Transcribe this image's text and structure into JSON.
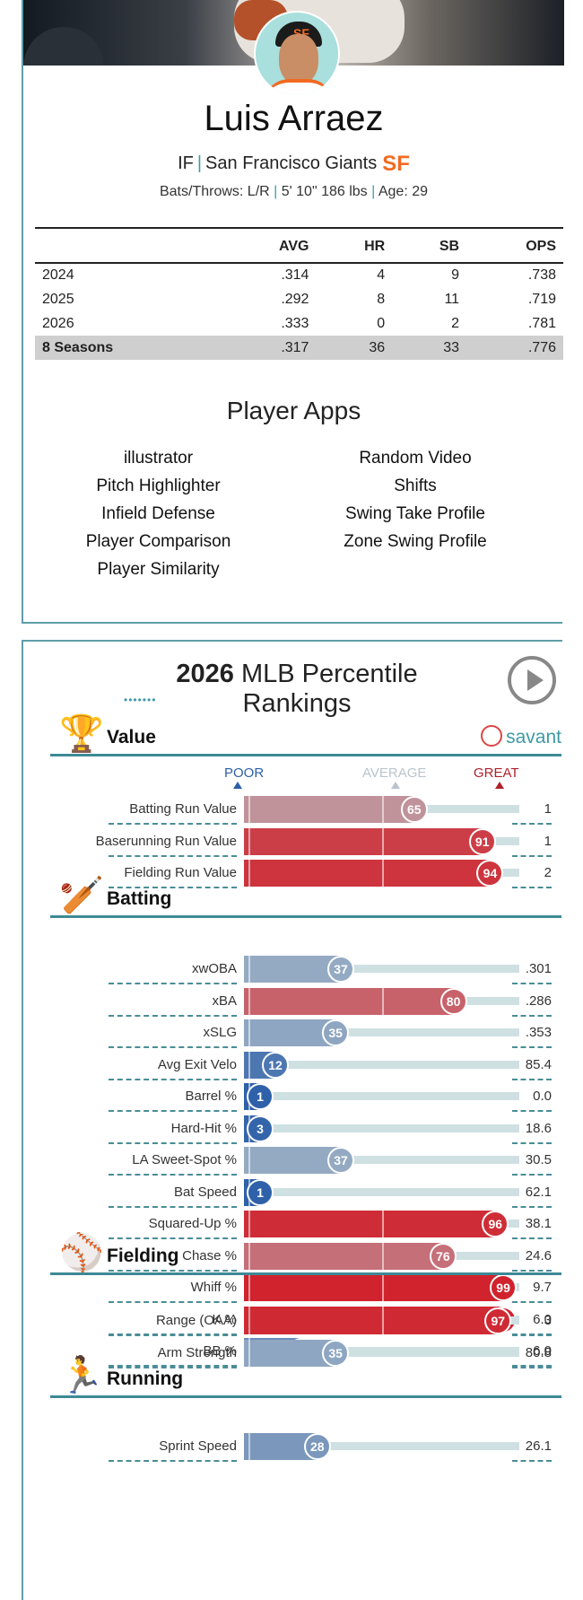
{
  "player": {
    "name": "Luis Arraez",
    "position": "IF",
    "sep": "|",
    "team": "San Francisco Giants",
    "team_logo": "SF",
    "bio_bats_throws": "Bats/Throws: L/R",
    "bio_height_weight": "5' 10\" 186 lbs",
    "bio_age": "Age: 29",
    "cap_logo": "SF"
  },
  "stats": {
    "headers": [
      "",
      "AVG",
      "HR",
      "SB",
      "OPS"
    ],
    "rows": [
      [
        "2024",
        ".314",
        "4",
        "9",
        ".738"
      ],
      [
        "2025",
        ".292",
        "8",
        "11",
        ".719"
      ],
      [
        "2026",
        ".333",
        "0",
        "2",
        ".781"
      ]
    ],
    "total": [
      "8 Seasons",
      ".317",
      "36",
      "33",
      ".776"
    ]
  },
  "apps": {
    "title": "Player Apps",
    "left": [
      "illustrator",
      "Pitch Highlighter",
      "Infield Defense",
      "Player Comparison",
      "Player Similarity"
    ],
    "right": [
      "Random Video",
      "Shifts",
      "Swing Take Profile",
      "Zone Swing Profile"
    ]
  },
  "percentiles": {
    "title_year": "2026",
    "title_rest": "MLB Percentile Rankings",
    "title_dots": "•••••••",
    "savant_label": "savant",
    "legend": {
      "poor": "POOR",
      "average": "AVERAGE",
      "great": "GREAT"
    },
    "colors": {
      "poor": "#2b5fa8",
      "average": "#b9c4cc",
      "great": "#d0202a"
    },
    "sections": [
      {
        "key": "value",
        "title": "Value",
        "icon": "trophy-icon",
        "glyph": "🏆",
        "metrics": [
          {
            "name": "Batting Run Value",
            "pct": 65,
            "value": "1"
          },
          {
            "name": "Baserunning Run Value",
            "pct": 91,
            "value": "1"
          },
          {
            "name": "Fielding Run Value",
            "pct": 94,
            "value": "2"
          }
        ]
      },
      {
        "key": "batting",
        "title": "Batting",
        "icon": "batter-icon",
        "glyph": "🏏",
        "metrics": [
          {
            "name": "xwOBA",
            "pct": 37,
            "value": ".301"
          },
          {
            "name": "xBA",
            "pct": 80,
            "value": ".286"
          },
          {
            "name": "xSLG",
            "pct": 35,
            "value": ".353"
          },
          {
            "name": "Avg Exit Velo",
            "pct": 12,
            "value": "85.4"
          },
          {
            "name": "Barrel %",
            "pct": 1,
            "value": "0.0"
          },
          {
            "name": "Hard-Hit %",
            "pct": 3,
            "value": "18.6"
          },
          {
            "name": "LA Sweet-Spot %",
            "pct": 37,
            "value": "30.5"
          },
          {
            "name": "Bat Speed",
            "pct": 1,
            "value": "62.1"
          },
          {
            "name": "Squared-Up %",
            "pct": 96,
            "value": "38.1"
          },
          {
            "name": "Chase %",
            "pct": 76,
            "value": "24.6"
          },
          {
            "name": "Whiff %",
            "pct": 99,
            "value": "9.7"
          },
          {
            "name": "K %",
            "pct": 99,
            "value": "6.0"
          },
          {
            "name": "BB %",
            "pct": 22,
            "value": "6.0"
          }
        ]
      },
      {
        "key": "fielding",
        "title": "Fielding",
        "icon": "fielder-icon",
        "glyph": "⚾",
        "metrics": [
          {
            "name": "Range (OAA)",
            "pct": 97,
            "value": "3"
          },
          {
            "name": "Arm Strength",
            "pct": 35,
            "value": "80.8"
          }
        ]
      },
      {
        "key": "running",
        "title": "Running",
        "icon": "runner-icon",
        "glyph": "🏃",
        "metrics": [
          {
            "name": "Sprint Speed",
            "pct": 28,
            "value": "26.1"
          }
        ]
      }
    ]
  }
}
